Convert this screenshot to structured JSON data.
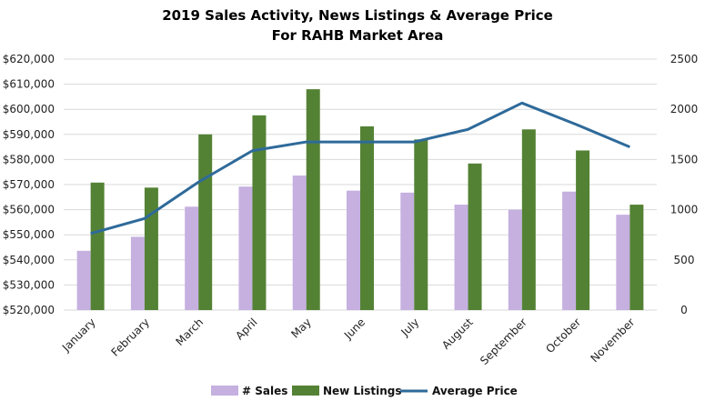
{
  "chart_data": {
    "type": "bar",
    "title": "2019 Sales Activity, News Listings & Average Price",
    "subtitle": "For RAHB Market Area",
    "categories": [
      "January",
      "February",
      "March",
      "April",
      "May",
      "June",
      "July",
      "August",
      "September",
      "October",
      "November"
    ],
    "y_left": {
      "ticks": [
        "$520,000",
        "$530,000",
        "$540,000",
        "$550,000",
        "$560,000",
        "$570,000",
        "$580,000",
        "$590,000",
        "$600,000",
        "$610,000",
        "$620,000"
      ],
      "min": 520000,
      "max": 620000
    },
    "y_right": {
      "ticks": [
        "0",
        "500",
        "1000",
        "1500",
        "2000",
        "2500"
      ],
      "min": 0,
      "max": 2500
    },
    "grid": true,
    "legend_position": "bottom",
    "series": [
      {
        "name": "# Sales",
        "type": "bar",
        "axis": "right",
        "color": "#c5b0e0",
        "values": [
          590,
          730,
          1030,
          1230,
          1340,
          1190,
          1170,
          1050,
          1000,
          1180,
          950
        ]
      },
      {
        "name": "New Listings",
        "type": "bar",
        "axis": "right",
        "color": "#548235",
        "values": [
          1270,
          1220,
          1750,
          1940,
          2200,
          1830,
          1700,
          1460,
          1800,
          1590,
          1050
        ]
      },
      {
        "name": "Average Price",
        "type": "line",
        "axis": "left",
        "color": "#2e6a9a",
        "values": [
          550500,
          556500,
          571000,
          583500,
          587000,
          587000,
          587000,
          592000,
          602500,
          594000,
          585000
        ]
      }
    ]
  }
}
